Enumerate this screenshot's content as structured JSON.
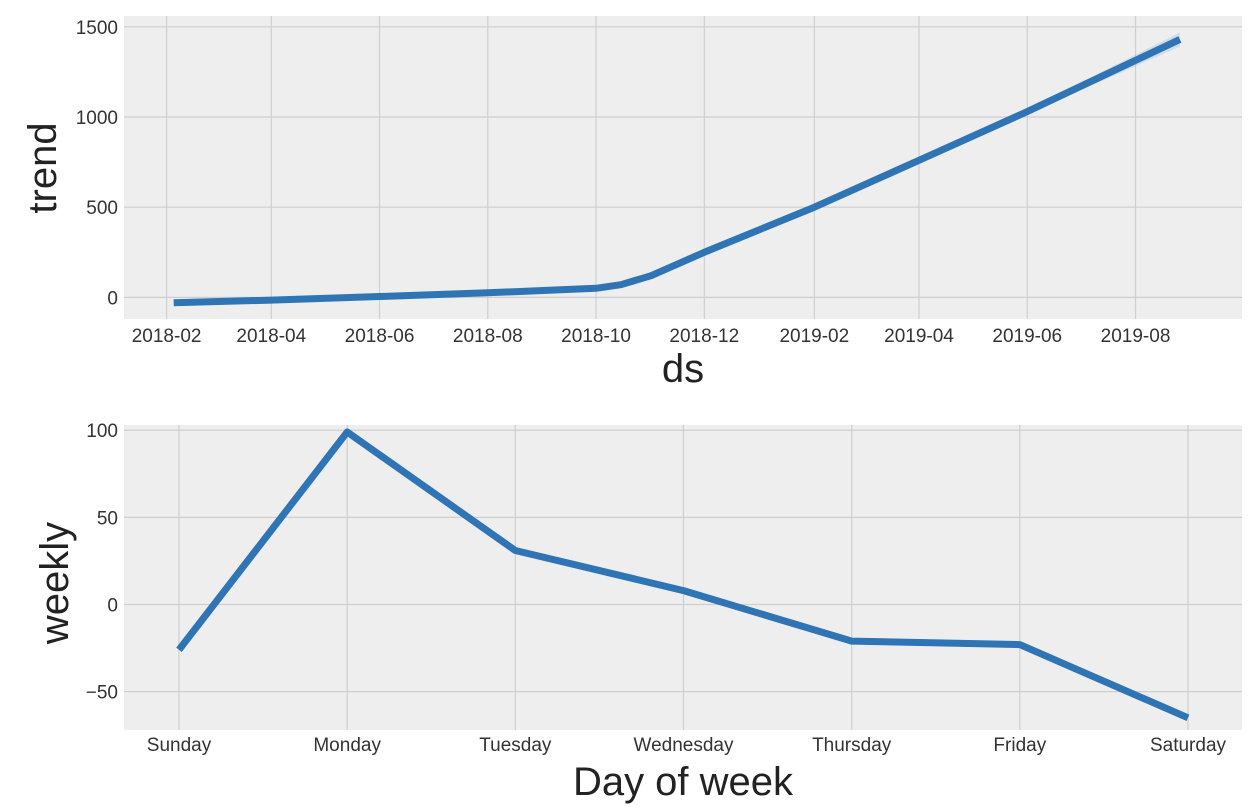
{
  "colors": {
    "series": "#2f74b5",
    "band": "#8fb4d9",
    "plot_background": "#eeeeee",
    "grid": "#cfcfcf"
  },
  "chart_data": [
    {
      "type": "line",
      "xlabel": "ds",
      "ylabel": "trend",
      "x_type": "date",
      "xlim": [
        "2018-01-08",
        "2019-09-30"
      ],
      "ylim": [
        -120,
        1560
      ],
      "x_ticks": [
        "2018-02",
        "2018-04",
        "2018-06",
        "2018-08",
        "2018-10",
        "2018-12",
        "2019-02",
        "2019-04",
        "2019-06",
        "2019-08"
      ],
      "x_tick_labels": [
        "2018-02",
        "2018-04",
        "2018-06",
        "2018-08",
        "2018-10",
        "2018-12",
        "2019-02",
        "2019-04",
        "2019-06",
        "2019-08"
      ],
      "y_ticks": [
        0,
        500,
        1000,
        1500
      ],
      "y_tick_labels": [
        "0",
        "500",
        "1000",
        "1500"
      ],
      "grid": true,
      "series": [
        {
          "x": [
            "2018-02-05",
            "2018-04-01",
            "2018-06-01",
            "2018-08-01",
            "2018-10-01",
            "2018-10-15",
            "2018-11-01",
            "2018-12-01",
            "2019-02-01",
            "2019-04-01",
            "2019-06-01",
            "2019-08-26"
          ],
          "y": [
            -30,
            -15,
            5,
            25,
            50,
            70,
            120,
            250,
            500,
            760,
            1030,
            1430
          ],
          "upper": [
            -28,
            -13,
            7,
            27,
            52,
            72,
            122,
            252,
            505,
            768,
            1042,
            1470
          ],
          "lower": [
            -32,
            -17,
            3,
            23,
            48,
            68,
            118,
            248,
            495,
            752,
            1018,
            1390
          ]
        }
      ]
    },
    {
      "type": "line",
      "xlabel": "Day of week",
      "ylabel": "weekly",
      "ylim": [
        -72,
        103
      ],
      "categories": [
        "Sunday",
        "Monday",
        "Tuesday",
        "Wednesday",
        "Thursday",
        "Friday",
        "Saturday"
      ],
      "y_ticks": [
        -50,
        0,
        50,
        100
      ],
      "y_tick_labels": [
        "−50",
        "0",
        "50",
        "100"
      ],
      "grid": true,
      "series": [
        {
          "values": [
            -26,
            99,
            31,
            8,
            -21,
            -23,
            -65
          ]
        }
      ]
    }
  ]
}
